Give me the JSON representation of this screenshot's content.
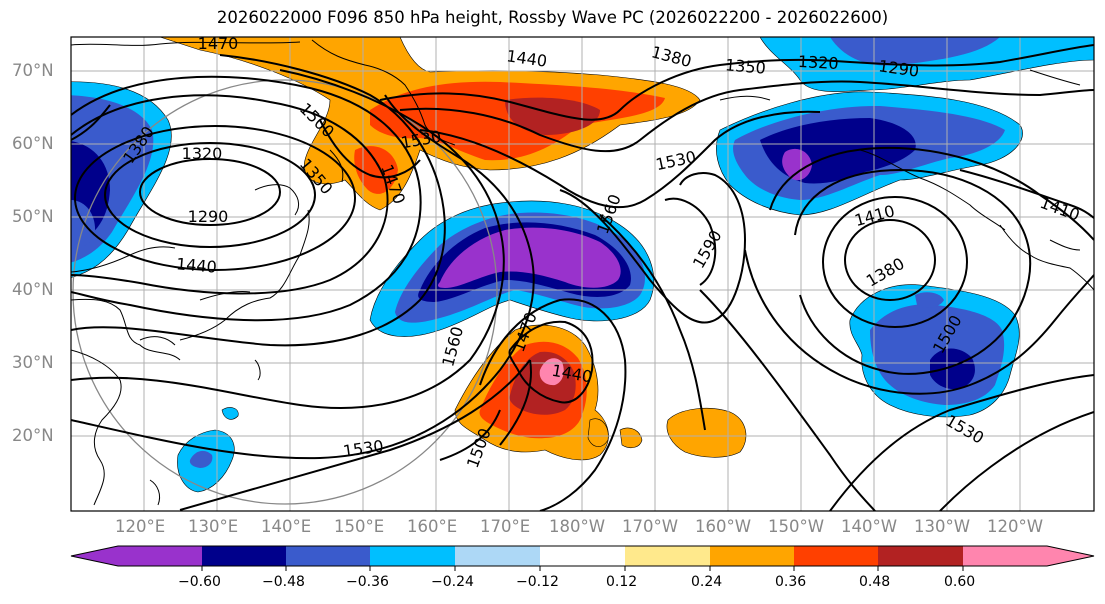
{
  "title": "2026022000 F096 850 hPa height, Rossby Wave PC (2026022200 - 2026022600)",
  "map": {
    "lat_ticks": [
      "70°N",
      "60°N",
      "50°N",
      "40°N",
      "30°N",
      "20°N"
    ],
    "lon_ticks": [
      "120°E",
      "130°E",
      "140°E",
      "150°E",
      "160°E",
      "170°E",
      "180°W",
      "170°W",
      "160°W",
      "150°W",
      "140°W",
      "130°W",
      "120°W"
    ],
    "contour_labels": [
      "1470",
      "1440",
      "1380",
      "1350",
      "1320",
      "1290",
      "1380",
      "1320",
      "1500",
      "1530",
      "1470",
      "1350",
      "1290",
      "1440",
      "1530",
      "1560",
      "1590",
      "1410",
      "1410",
      "1380",
      "1560",
      "1470",
      "1440",
      "1500",
      "1530",
      "1500",
      "1530"
    ]
  },
  "colorbar": {
    "ticks": [
      "−0.60",
      "−0.48",
      "−0.36",
      "−0.24",
      "−0.12",
      "0.12",
      "0.24",
      "0.36",
      "0.48",
      "0.60"
    ],
    "colors": [
      "#9932CC",
      "#00008B",
      "#3A5BCC",
      "#00BFFF",
      "#ADD8F6",
      "#FFFFFF",
      "#FFE98C",
      "#FFA500",
      "#FF4000",
      "#B22222",
      "#FF85AE"
    ]
  },
  "palette": {
    "purple": "#9932CC",
    "navy": "#00008B",
    "royal": "#3A5BCC",
    "sky": "#00BFFF",
    "pale_blue": "#ADD8F6",
    "pale_yellow": "#FFE98C",
    "orange": "#FFA500",
    "red_orange": "#FF4000",
    "firebrick": "#B22222",
    "pink": "#FF85AE",
    "grid": "#b0b0b0",
    "tick_text": "#888888"
  }
}
